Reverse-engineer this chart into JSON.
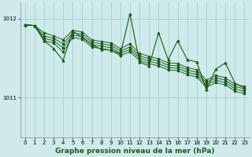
{
  "title": "Graphe pression niveau de la mer (hPa)",
  "bg_color": "#ceeaea",
  "grid_color": "#aad4d4",
  "line_color": "#1a5c1a",
  "xlim": [
    -0.5,
    23.5
  ],
  "ylim": [
    1010.5,
    1012.2
  ],
  "yticks": [
    1011,
    1012
  ],
  "xticks": [
    0,
    1,
    2,
    3,
    4,
    5,
    6,
    7,
    8,
    9,
    10,
    11,
    12,
    13,
    14,
    15,
    16,
    17,
    18,
    19,
    20,
    21,
    22,
    23
  ],
  "series": [
    [
      1011.92,
      1011.91,
      1011.82,
      1011.78,
      1011.73,
      1011.85,
      1011.83,
      1011.73,
      1011.71,
      1011.69,
      1011.62,
      1011.68,
      1011.56,
      1011.52,
      1011.49,
      1011.44,
      1011.43,
      1011.38,
      1011.35,
      1011.22,
      1011.28,
      1011.25,
      1011.17,
      1011.14
    ],
    [
      1011.92,
      1011.91,
      1011.78,
      1011.75,
      1011.68,
      1011.82,
      1011.8,
      1011.7,
      1011.68,
      1011.66,
      1011.59,
      1011.64,
      1011.53,
      1011.49,
      1011.46,
      1011.41,
      1011.4,
      1011.35,
      1011.32,
      1011.19,
      1011.25,
      1011.22,
      1011.14,
      1011.11
    ],
    [
      1011.92,
      1011.91,
      1011.75,
      1011.72,
      1011.63,
      1011.79,
      1011.77,
      1011.67,
      1011.65,
      1011.63,
      1011.56,
      1011.61,
      1011.5,
      1011.46,
      1011.43,
      1011.38,
      1011.37,
      1011.32,
      1011.29,
      1011.16,
      1011.22,
      1011.19,
      1011.11,
      1011.08
    ],
    [
      1011.92,
      1011.91,
      1011.72,
      1011.69,
      1011.58,
      1011.76,
      1011.74,
      1011.64,
      1011.62,
      1011.6,
      1011.53,
      1011.58,
      1011.47,
      1011.43,
      1011.4,
      1011.35,
      1011.34,
      1011.29,
      1011.26,
      1011.13,
      1011.19,
      1011.16,
      1011.08,
      1011.05
    ]
  ],
  "spiky_series": [
    1011.92,
    1011.91,
    1011.72,
    1011.62,
    1011.47,
    1011.84,
    1011.76,
    1011.67,
    1011.61,
    1011.6,
    1011.55,
    1012.06,
    1011.45,
    1011.4,
    1011.82,
    1011.48,
    1011.72,
    1011.48,
    1011.45,
    1011.1,
    1011.36,
    1011.44,
    1011.18,
    1011.12
  ],
  "xlabel_fontsize": 6.5,
  "tick_fontsize": 5.0
}
